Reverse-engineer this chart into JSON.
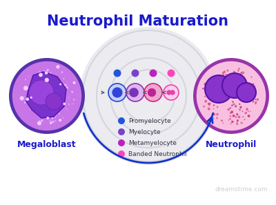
{
  "title": "Neutrophil Maturation",
  "title_color": "#1a1acc",
  "title_fontsize": 15,
  "background_color": "#ffffff",
  "megaloblast_label": "Megaloblast",
  "neutrophil_label": "Neutrophil",
  "label_color": "#1a1acc",
  "label_fontsize": 9,
  "legend_items": [
    {
      "label": "Promyelocyte",
      "color": "#2255dd"
    },
    {
      "label": "Myelocyte",
      "color": "#7744cc"
    },
    {
      "label": "Metamyelocyte",
      "color": "#bb22bb"
    },
    {
      "label": "Banded Neutrophil",
      "color": "#ff44bb"
    }
  ],
  "watermark": "dreamstime.com",
  "watermark_color": "#bbbbbb",
  "watermark_fontsize": 6.5
}
